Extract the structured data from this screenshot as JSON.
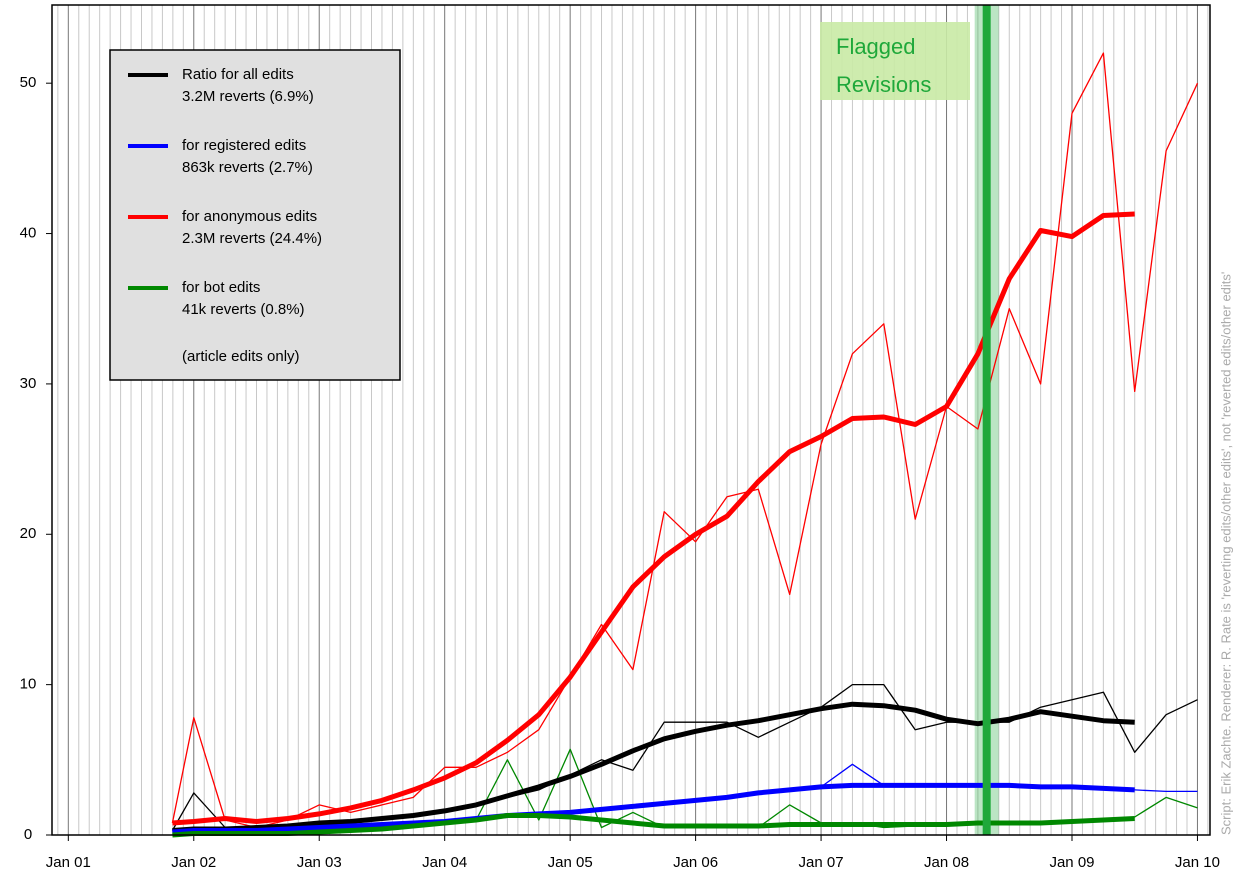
{
  "chart_data": {
    "type": "line",
    "x": [
      2001.83,
      2002.0,
      2002.25,
      2002.5,
      2002.75,
      2003.0,
      2003.25,
      2003.5,
      2003.75,
      2004.0,
      2004.25,
      2004.5,
      2004.75,
      2005.0,
      2005.25,
      2005.5,
      2005.75,
      2006.0,
      2006.25,
      2006.5,
      2006.75,
      2007.0,
      2007.25,
      2007.5,
      2007.75,
      2008.0,
      2008.25,
      2008.5,
      2008.75,
      2009.0,
      2009.25,
      2009.5,
      2009.75,
      2010.0
    ],
    "series": [
      {
        "name": "Ratio for all edits",
        "detail": "3.2M reverts (6.9%)",
        "color": "#000000",
        "values": [
          0.3,
          2.8,
          0.5,
          0.4,
          0.6,
          0.8,
          0.9,
          1.0,
          1.2,
          1.5,
          2.0,
          2.5,
          3.0,
          4.0,
          5.0,
          4.3,
          7.5,
          7.5,
          7.5,
          6.5,
          7.5,
          8.5,
          10,
          10,
          7,
          7.5,
          7.5,
          7.5,
          8.5,
          9,
          9.5,
          5.5,
          8,
          9
        ],
        "smoothed_values": [
          0.3,
          0.4,
          0.4,
          0.5,
          0.6,
          0.8,
          0.9,
          1.1,
          1.3,
          1.6,
          2.0,
          2.6,
          3.2,
          3.9,
          4.7,
          5.6,
          6.4,
          6.9,
          7.3,
          7.6,
          8.0,
          8.4,
          8.7,
          8.6,
          8.3,
          7.7,
          7.4,
          7.7,
          8.2,
          7.9,
          7.6,
          7.5,
          null,
          null
        ]
      },
      {
        "name": "for registered edits",
        "detail": "863k reverts (2.7%)",
        "color": "#0000ff",
        "values": [
          0.2,
          0.5,
          0.3,
          0.3,
          0.4,
          0.5,
          0.6,
          0.7,
          0.8,
          0.9,
          1.1,
          1.3,
          1.4,
          1.5,
          1.7,
          1.9,
          2.1,
          2.3,
          2.5,
          2.8,
          3.0,
          3.2,
          4.7,
          3.3,
          3.3,
          3.3,
          3.3,
          3.3,
          3.2,
          3.2,
          3.1,
          3.0,
          2.9,
          2.9
        ],
        "smoothed_values": [
          0.2,
          0.3,
          0.3,
          0.3,
          0.4,
          0.5,
          0.6,
          0.7,
          0.8,
          0.9,
          1.1,
          1.3,
          1.4,
          1.5,
          1.7,
          1.9,
          2.1,
          2.3,
          2.5,
          2.8,
          3.0,
          3.2,
          3.3,
          3.3,
          3.3,
          3.3,
          3.3,
          3.3,
          3.2,
          3.2,
          3.1,
          3.0,
          null,
          null
        ]
      },
      {
        "name": "for anonymous edits",
        "detail": "2.3M reverts (24.4%)",
        "color": "#ff0000",
        "values": [
          0.8,
          7.8,
          1.0,
          0.5,
          1.0,
          2.0,
          1.5,
          2.0,
          2.5,
          4.5,
          4.5,
          5.5,
          7,
          10.5,
          14,
          11,
          21.5,
          19.5,
          22.5,
          23,
          16,
          26,
          32,
          34,
          21,
          28.5,
          27,
          35,
          30,
          48,
          52,
          29.5,
          45.5,
          50
        ],
        "smoothed_values": [
          0.8,
          0.9,
          1.1,
          0.9,
          1.1,
          1.4,
          1.8,
          2.3,
          3.0,
          3.8,
          4.8,
          6.3,
          8.0,
          10.5,
          13.5,
          16.5,
          18.5,
          20,
          21.2,
          23.5,
          25.5,
          26.5,
          27.7,
          27.8,
          27.3,
          28.5,
          32,
          37,
          40.2,
          39.8,
          41.2,
          41.3,
          null,
          null
        ]
      },
      {
        "name": "for bot edits",
        "detail": "41k reverts (0.8%)",
        "color": "#008800",
        "values": [
          0,
          0.1,
          0,
          0,
          0.1,
          0.2,
          0.2,
          0.3,
          0.5,
          0.8,
          1.0,
          5.0,
          1.0,
          5.7,
          0.5,
          1.5,
          0.5,
          0.5,
          0.5,
          0.5,
          2.0,
          0.8,
          0.8,
          0.5,
          0.6,
          0.8,
          0.7,
          0.8,
          0.9,
          1.0,
          1.0,
          1.2,
          2.5,
          1.8
        ],
        "smoothed_values": [
          0,
          0.1,
          0.1,
          0.1,
          0.1,
          0.2,
          0.3,
          0.4,
          0.6,
          0.8,
          1.0,
          1.3,
          1.3,
          1.2,
          1.0,
          0.8,
          0.6,
          0.6,
          0.6,
          0.6,
          0.7,
          0.7,
          0.7,
          0.7,
          0.7,
          0.7,
          0.8,
          0.8,
          0.8,
          0.9,
          1.0,
          1.1,
          null,
          null
        ]
      }
    ],
    "legend_note": "(article edits only)",
    "xlim": [
      2000.87,
      2010.1
    ],
    "xticks": [
      {
        "value": 2001,
        "label": "Jan 01"
      },
      {
        "value": 2002,
        "label": "Jan 02"
      },
      {
        "value": 2003,
        "label": "Jan 03"
      },
      {
        "value": 2004,
        "label": "Jan 04"
      },
      {
        "value": 2005,
        "label": "Jan 05"
      },
      {
        "value": 2006,
        "label": "Jan 06"
      },
      {
        "value": 2007,
        "label": "Jan 07"
      },
      {
        "value": 2008,
        "label": "Jan 08"
      },
      {
        "value": 2009,
        "label": "Jan 09"
      },
      {
        "value": 2010,
        "label": "Jan 10"
      }
    ],
    "ylim": [
      0,
      55.2
    ],
    "yticks": [
      0,
      10,
      20,
      30,
      40,
      50
    ],
    "minor_grid_divisions": 12,
    "legend": "upper left",
    "annotation": {
      "text": [
        "Flagged",
        "Revisions"
      ],
      "x": 2008.32,
      "color": "#1fa83a"
    },
    "credit": "Script: Erik Zachte. Renderer: R.     Rate is 'reverting edits/other edits', not 'reverted edits/other edits'"
  }
}
